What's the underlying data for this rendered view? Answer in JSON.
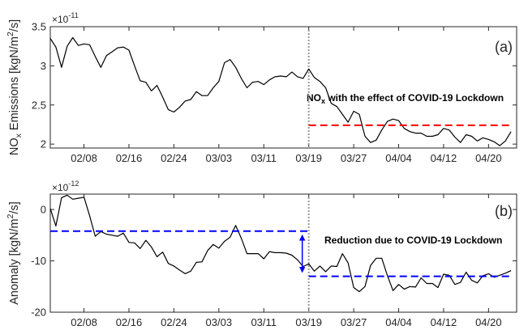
{
  "chart_data": [
    {
      "type": "line",
      "panel_label": "(a)",
      "ylabel": {
        "main": "NO",
        "sub": "x",
        "rest": " Emissions [kgN/m",
        "sup": "2",
        "end": "/s]"
      },
      "y_exponent": {
        "base": "×10",
        "power": "-11"
      },
      "ylim": [
        1.95,
        3.5
      ],
      "y_ticks": [
        2,
        2.5,
        3,
        3.5
      ],
      "y_tick_labels": [
        "2",
        "2.5",
        "3",
        "3.5"
      ],
      "xlim": [
        0,
        83
      ],
      "x_ticks": [
        6,
        14,
        22,
        30,
        38,
        46,
        54,
        62,
        70,
        78
      ],
      "x_tick_labels": [
        "02/08",
        "02/16",
        "02/24",
        "03/03",
        "03/11",
        "03/19",
        "03/27",
        "04/04",
        "04/12",
        "04/20"
      ],
      "lockdown_day": 46,
      "series": [
        {
          "color": "#000000",
          "x": [
            0,
            1,
            2,
            3,
            4,
            5,
            6,
            7,
            8,
            9,
            10,
            11,
            12,
            13,
            14,
            15,
            16,
            17,
            18,
            19,
            20,
            21,
            22,
            23,
            24,
            25,
            26,
            27,
            28,
            29,
            30,
            31,
            32,
            33,
            34,
            35,
            36,
            37,
            38,
            39,
            40,
            41,
            42,
            43,
            44,
            45,
            46,
            47,
            48,
            49,
            50,
            51,
            52,
            53,
            54,
            55,
            56,
            57,
            58,
            59,
            60,
            61,
            62,
            63,
            64,
            65,
            66,
            67,
            68,
            69,
            70,
            71,
            72,
            73,
            74,
            75,
            76,
            77,
            78,
            79,
            80,
            81,
            82
          ],
          "values": [
            3.35,
            3.24,
            2.98,
            3.25,
            3.36,
            3.26,
            3.28,
            3.27,
            3.12,
            2.98,
            3.13,
            3.18,
            3.23,
            3.24,
            3.2,
            3.0,
            2.81,
            2.79,
            2.68,
            2.75,
            2.6,
            2.44,
            2.41,
            2.47,
            2.55,
            2.57,
            2.67,
            2.62,
            2.62,
            2.72,
            2.8,
            3.04,
            3.08,
            2.98,
            2.84,
            2.72,
            2.79,
            2.8,
            2.76,
            2.82,
            2.86,
            2.87,
            2.86,
            2.92,
            2.86,
            2.84,
            2.96,
            2.85,
            2.8,
            2.72,
            2.52,
            2.48,
            2.38,
            2.28,
            2.42,
            2.38,
            2.1,
            2.02,
            2.05,
            2.18,
            2.29,
            2.32,
            2.3,
            2.2,
            2.16,
            2.14,
            2.14,
            2.1,
            2.1,
            2.12,
            2.2,
            2.18,
            2.09,
            2.02,
            2.12,
            2.1,
            2.04,
            2.08,
            2.06,
            2.03,
            1.98,
            2.04,
            2.16
          ]
        },
        {
          "name": "NOx with the effect of COVID-19 Lockdown",
          "color": "#ff0000",
          "dashed": true,
          "x": [
            46,
            82
          ],
          "values": [
            2.24,
            2.24
          ]
        }
      ],
      "annotation": {
        "main": "NO",
        "sub": "x",
        "rest": " with the effect of COVID-19 Lockdown"
      }
    },
    {
      "type": "line",
      "panel_label": "(b)",
      "ylabel": {
        "main": "Anomaly [kgN/m",
        "sup": "2",
        "end": "/s]"
      },
      "y_exponent": {
        "base": "×10",
        "power": "-12"
      },
      "ylim": [
        -20,
        3
      ],
      "y_ticks": [
        -20,
        -10,
        0
      ],
      "y_tick_labels": [
        "-20",
        "-10",
        "0"
      ],
      "xlim": [
        0,
        83
      ],
      "x_ticks": [
        6,
        14,
        22,
        30,
        38,
        46,
        54,
        62,
        70,
        78
      ],
      "x_tick_labels": [
        "02/08",
        "02/16",
        "02/24",
        "03/03",
        "03/11",
        "03/19",
        "03/27",
        "04/04",
        "04/12",
        "04/20"
      ],
      "lockdown_day": 46,
      "series": [
        {
          "color": "#000000",
          "x": [
            0,
            1,
            2,
            3,
            4,
            5,
            6,
            7,
            8,
            9,
            10,
            11,
            12,
            13,
            14,
            15,
            16,
            17,
            18,
            19,
            20,
            21,
            22,
            23,
            24,
            25,
            26,
            27,
            28,
            29,
            30,
            31,
            32,
            33,
            34,
            35,
            36,
            37,
            38,
            39,
            40,
            41,
            42,
            43,
            44,
            45,
            46,
            47,
            48,
            49,
            50,
            51,
            52,
            53,
            54,
            55,
            56,
            57,
            58,
            59,
            60,
            61,
            62,
            63,
            64,
            65,
            66,
            67,
            68,
            69,
            70,
            71,
            72,
            73,
            74,
            75,
            76,
            77,
            78,
            79,
            80,
            81,
            82
          ],
          "values": [
            0.2,
            -3.2,
            2.3,
            2.8,
            2.0,
            2.2,
            2.4,
            -1.2,
            -5.2,
            -4.3,
            -4.8,
            -5.0,
            -5.2,
            -4.6,
            -6.4,
            -6.5,
            -7.6,
            -6.0,
            -7.3,
            -9.2,
            -8.3,
            -10.5,
            -11.0,
            -11.8,
            -12.5,
            -12.0,
            -10.3,
            -10.2,
            -8.0,
            -6.8,
            -7.5,
            -6.2,
            -5.4,
            -3.1,
            -5.6,
            -8.6,
            -8.6,
            -8.6,
            -9.6,
            -8.2,
            -8.4,
            -8.4,
            -8.5,
            -8.9,
            -9.8,
            -11.1,
            -10.6,
            -12.0,
            -11.0,
            -12.1,
            -11.0,
            -11.1,
            -8.6,
            -10.4,
            -15.2,
            -16.0,
            -15.0,
            -10.9,
            -9.5,
            -9.5,
            -12.9,
            -15.8,
            -14.6,
            -15.5,
            -15.0,
            -15.1,
            -13.3,
            -14.4,
            -14.4,
            -15.2,
            -12.6,
            -12.8,
            -14.6,
            -14.2,
            -12.2,
            -13.8,
            -14.3,
            -12.9,
            -12.5,
            -13.2,
            -12.8,
            -12.4,
            -11.9
          ]
        },
        {
          "color": "#0000ff",
          "dashed": true,
          "x": [
            0,
            46
          ],
          "values": [
            -4.2,
            -4.2
          ]
        },
        {
          "name": "Reduction due to COVID-19 Lockdown",
          "color": "#0000ff",
          "dashed": true,
          "x": [
            46,
            82
          ],
          "values": [
            -13.0,
            -13.0
          ]
        }
      ],
      "reduction_arrow": {
        "x": 46,
        "from": -4.2,
        "to": -13.0,
        "color": "#0000ff"
      },
      "annotation": {
        "text": "Reduction due to COVID-19 Lockdown"
      }
    }
  ]
}
